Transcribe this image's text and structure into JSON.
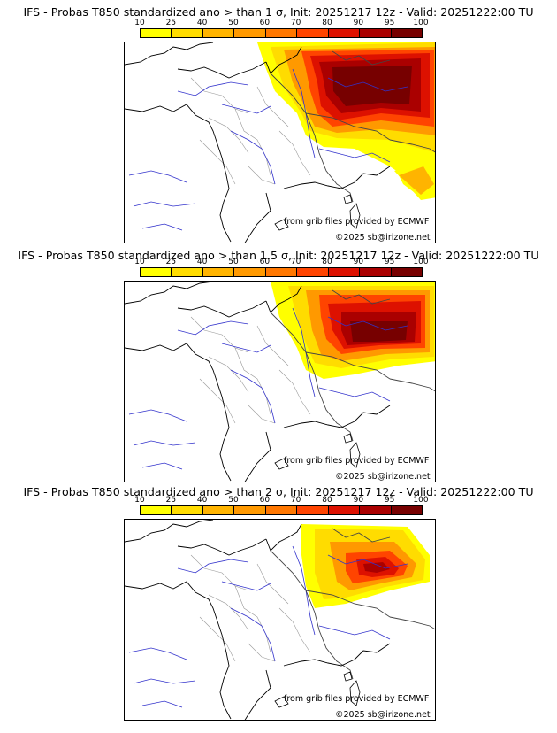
{
  "colorbar": {
    "ticks": [
      "10",
      "25",
      "40",
      "50",
      "60",
      "70",
      "80",
      "90",
      "95",
      "100"
    ],
    "colors": [
      "#ffff00",
      "#ffdc00",
      "#ffb400",
      "#ff9900",
      "#ff7700",
      "#ff4400",
      "#dd1100",
      "#aa0000",
      "#770000"
    ]
  },
  "credits": {
    "source": "from grib files provided by ECMWF",
    "copyright": "©2025 sb@irizone.net"
  },
  "panels": [
    {
      "title": "IFS - Probas T850  standardized ano > than 1 σ, Init: 20251217 12z - Valid: 20251222:00 TU",
      "threshold": "1 σ"
    },
    {
      "title": "IFS - Probas T850  standardized ano > than 1.5 σ, Init: 20251217 12z - Valid: 20251222:00 TU",
      "threshold": "1.5 σ"
    },
    {
      "title": "IFS - Probas T850  standardized ano > than 2 σ, Init: 20251217 12z - Valid: 20251222:00 TU",
      "threshold": "2 σ"
    }
  ]
}
